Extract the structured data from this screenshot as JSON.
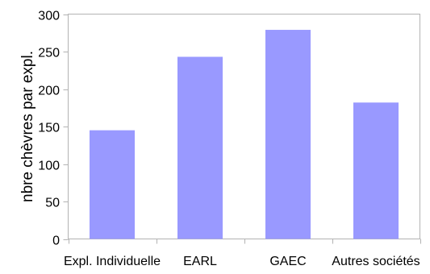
{
  "chart_data": {
    "type": "bar",
    "title": "",
    "xlabel": "",
    "ylabel": "nbre chèvres par expl.",
    "categories": [
      "Expl. Individuelle",
      "EARL",
      "GAEC",
      "Autres sociétés"
    ],
    "values": [
      145,
      243,
      279,
      182
    ],
    "ylim": [
      0,
      300
    ],
    "yticks": [
      0,
      50,
      100,
      150,
      200,
      250,
      300
    ],
    "grid": false,
    "legend": "none",
    "bar_color": "#9999ff",
    "axis_color": "#b3b3b3"
  }
}
